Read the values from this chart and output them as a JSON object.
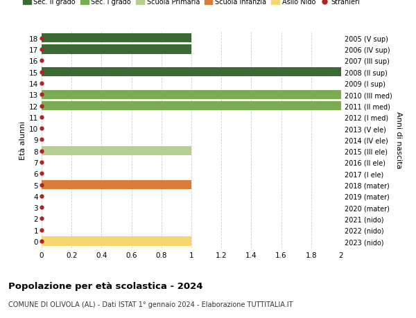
{
  "ages": [
    18,
    17,
    16,
    15,
    14,
    13,
    12,
    11,
    10,
    9,
    8,
    7,
    6,
    5,
    4,
    3,
    2,
    1,
    0
  ],
  "years": [
    "2005 (V sup)",
    "2006 (IV sup)",
    "2007 (III sup)",
    "2008 (II sup)",
    "2009 (I sup)",
    "2010 (III med)",
    "2011 (II med)",
    "2012 (I med)",
    "2013 (V ele)",
    "2014 (IV ele)",
    "2015 (III ele)",
    "2016 (II ele)",
    "2017 (I ele)",
    "2018 (mater)",
    "2019 (mater)",
    "2020 (mater)",
    "2021 (nido)",
    "2022 (nido)",
    "2023 (nido)"
  ],
  "bar_values": [
    1,
    1,
    0,
    2,
    0,
    2,
    2,
    0,
    0,
    0,
    1,
    0,
    0,
    1,
    0,
    0,
    0,
    0,
    1
  ],
  "bar_colors_by_age": {
    "18": "#3a6b35",
    "17": "#3a6b35",
    "16": "#3a6b35",
    "15": "#3a6b35",
    "14": "#3a6b35",
    "13": "#7aad52",
    "12": "#7aad52",
    "11": "#7aad52",
    "10": "#b5cf8e",
    "9": "#b5cf8e",
    "8": "#b5cf8e",
    "7": "#b5cf8e",
    "6": "#b5cf8e",
    "5": "#d97c3a",
    "4": "#d97c3a",
    "3": "#d97c3a",
    "2": "#f5d76e",
    "1": "#f5d76e",
    "0": "#f5d76e"
  },
  "red_dot_color": "#b22222",
  "grid_color": "#cccccc",
  "bg_color": "#ffffff",
  "legend_labels": [
    "Sec. II grado",
    "Sec. I grado",
    "Scuola Primaria",
    "Scuola Infanzia",
    "Asilo Nido",
    "Stranieri"
  ],
  "legend_colors": [
    "#3a6b35",
    "#7aad52",
    "#b5cf8e",
    "#d97c3a",
    "#f5d76e",
    "#b22222"
  ],
  "ylabel_left": "Età alunni",
  "ylabel_right": "Anni di nascita",
  "title": "Popolazione per età scolastica - 2024",
  "subtitle": "COMUNE DI OLIVOLA (AL) - Dati ISTAT 1° gennaio 2024 - Elaborazione TUTTITALIA.IT",
  "xlim": [
    0,
    2.0
  ],
  "xticks": [
    0,
    0.2,
    0.4,
    0.6,
    0.8,
    1.0,
    1.2,
    1.4,
    1.6,
    1.8,
    2.0
  ]
}
